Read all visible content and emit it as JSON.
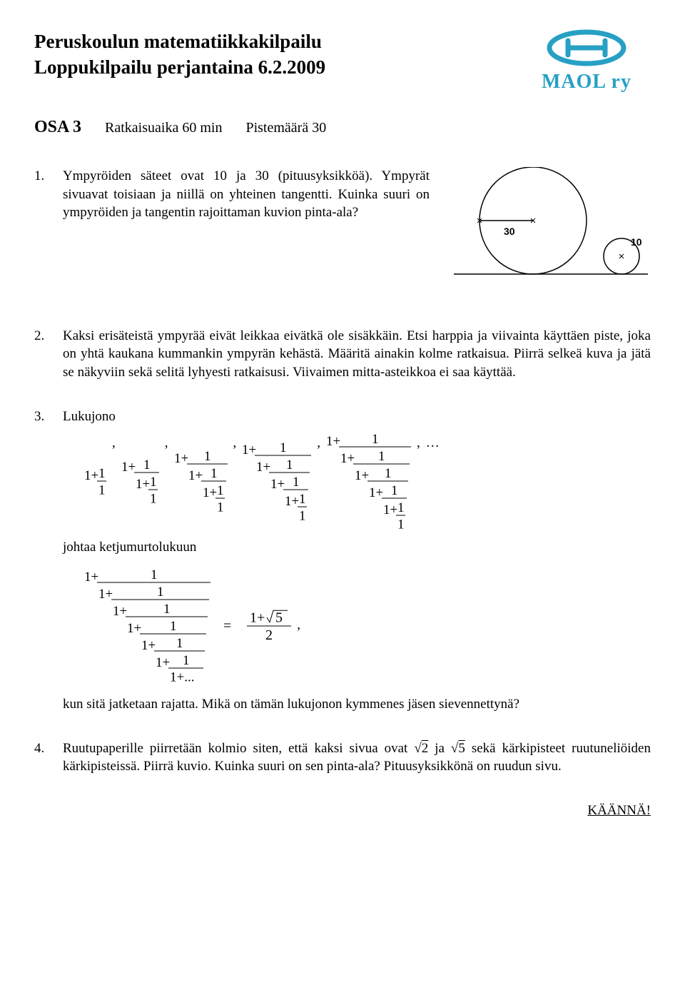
{
  "header": {
    "title1": "Peruskoulun matematiikkakilpailu",
    "title2": "Loppukilpailu perjantaina 6.2.2009"
  },
  "logo": {
    "text": "MAOL ry",
    "stroke_color": "#27a0c4",
    "text_color": "#27a0c4"
  },
  "section": {
    "part": "OSA 3",
    "time": "Ratkaisuaika 60 min",
    "points": "Pistemäärä 30"
  },
  "problems": {
    "p1": {
      "num": "1.",
      "text": "Ympyröiden säteet ovat 10 ja 30 (pituusyksikköä). Ympyrät sivuavat toisiaan ja niillä on yhteinen tangentti. Kuinka suuri on ympyröiden ja tangentin rajoittaman kuvion pinta-ala?",
      "fig": {
        "big_r": 30,
        "small_r": 10,
        "big_label": "30",
        "small_label": "10",
        "stroke": "#000000",
        "bg": "#ffffff"
      }
    },
    "p2": {
      "num": "2.",
      "text": "Kaksi erisäteistä ympyrää eivät leikkaa eivätkä ole sisäkkäin. Etsi harppia ja viivainta käyttäen piste, joka on yhtä kaukana kummankin ympyrän kehästä. Määritä ainakin kolme ratkaisua. Piirrä selkeä kuva ja jätä se näkyviin sekä selitä lyhyesti ratkaisusi. Viivaimen mitta-asteikkoa ei saa käyttää."
    },
    "p3": {
      "num": "3.",
      "leadin": "Lukujono",
      "mid": "johtaa ketjumurtolukuun",
      "after": "kun sitä jatketaan rajatta. Mikä on tämän lukujonon kymmenes jäsen sievennettynä?",
      "rhs_num_a": "1+",
      "rhs_num_b": "5",
      "rhs_den": "2",
      "comma": ",",
      "ellipsis": ", …",
      "eq": "="
    },
    "p4": {
      "num": "4.",
      "text_a": "Ruutupaperille piirretään kolmio siten, että kaksi sivua ovat ",
      "sqrt2": "2",
      "mid": " ja ",
      "sqrt5": "5",
      "text_b": " sekä kärkipisteet ruutuneliöiden kärkipisteissä. Piirrä kuvio. Kuinka suuri on sen pinta-ala? Pituusyksikkönä on ruudun sivu."
    }
  },
  "flip": "KÄÄNNÄ!",
  "cf": {
    "levels": [
      1,
      2,
      3,
      4,
      5
    ],
    "unit_h": 22,
    "num_w": 36,
    "color": "#000000"
  },
  "cf_inf": {
    "levels": 7,
    "unit_h": 22,
    "ellipsis": "1+..."
  }
}
